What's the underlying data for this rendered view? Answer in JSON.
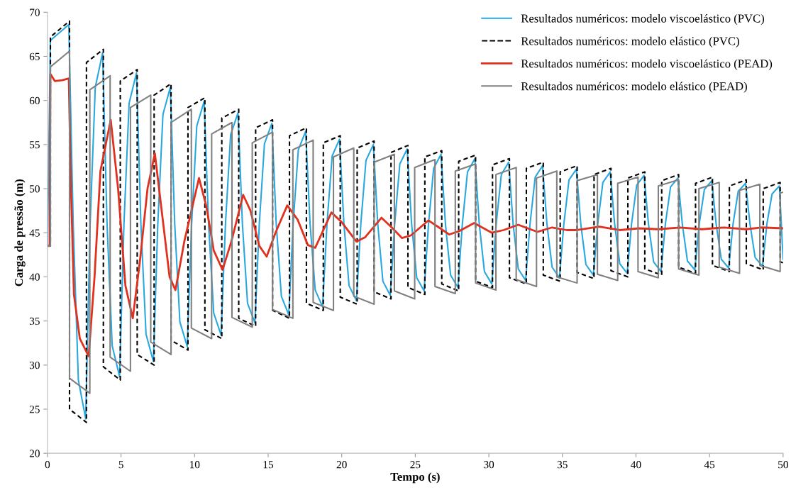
{
  "chart_data": {
    "type": "line",
    "xlabel": "Tempo (s)",
    "ylabel": "Carga de pressão (m)",
    "xlim": [
      0,
      50
    ],
    "ylim": [
      20,
      70
    ],
    "xticks": [
      0,
      5,
      10,
      15,
      20,
      25,
      30,
      35,
      40,
      45,
      50
    ],
    "yticks": [
      20,
      25,
      30,
      35,
      40,
      45,
      50,
      55,
      60,
      65,
      70
    ],
    "grid": false,
    "legend": "top right",
    "marker": "none",
    "series": [
      {
        "name": "Resultados numéricos: modelo viscoelástico (PVC)",
        "color": "#29a8e0",
        "line_style": "solid",
        "x": [
          0,
          0.2,
          1.45,
          1.75,
          2.1,
          2.6,
          2.9,
          3.25,
          3.75,
          4.05,
          4.4,
          4.9,
          5.2,
          5.55,
          6.05,
          6.35,
          6.7,
          7.2,
          7.5,
          7.85,
          8.35,
          8.65,
          9.0,
          9.5,
          9.8,
          10.15,
          10.65,
          10.95,
          11.3,
          11.8,
          12.1,
          12.45,
          12.95,
          13.25,
          13.6,
          14.1,
          14.4,
          14.75,
          15.25,
          15.55,
          15.9,
          16.4,
          16.7,
          17.05,
          17.55,
          17.85,
          18.2,
          18.7,
          19.0,
          19.35,
          19.85,
          20.15,
          20.5,
          21.0,
          21.3,
          21.65,
          22.15,
          22.45,
          22.8,
          23.3,
          23.6,
          23.95,
          24.45,
          24.75,
          25.1,
          25.6,
          25.9,
          26.25,
          26.75,
          27.05,
          27.4,
          27.9,
          28.2,
          28.55,
          29.05,
          29.35,
          29.7,
          30.2,
          30.5,
          30.85,
          31.35,
          31.65,
          32.0,
          32.5,
          32.8,
          33.15,
          33.65,
          33.95,
          34.3,
          34.8,
          35.1,
          35.45,
          35.95,
          36.25,
          36.6,
          37.1,
          37.4,
          37.75,
          38.25,
          38.55,
          38.9,
          39.4,
          39.7,
          40.05,
          40.55,
          40.85,
          41.2,
          41.7,
          42.0,
          42.35,
          42.85,
          43.15,
          43.5,
          44.0,
          44.3,
          44.65,
          45.15,
          45.45,
          45.8,
          46.3,
          46.6,
          46.95,
          47.45,
          47.75,
          48.1,
          48.6,
          48.9,
          49.25,
          49.75,
          50
        ],
        "values": [
          43.5,
          66.8,
          68.6,
          46,
          28.3,
          23.9,
          46,
          61.5,
          65.4,
          46,
          32.2,
          28.7,
          46,
          59.7,
          63.1,
          46,
          33.5,
          30.4,
          46,
          58.4,
          61.5,
          46,
          34.9,
          32.1,
          46,
          57.1,
          59.9,
          46,
          35.9,
          33.4,
          46,
          56.1,
          58.6,
          46,
          37.0,
          34.8,
          46,
          55.1,
          57.4,
          46,
          37.8,
          35.7,
          46,
          54.4,
          56.5,
          46,
          38.5,
          36.6,
          46,
          53.7,
          55.6,
          46,
          39.0,
          37.3,
          46,
          53.2,
          55.0,
          46,
          39.5,
          37.9,
          46,
          52.8,
          54.5,
          46,
          39.9,
          38.4,
          46,
          52.3,
          53.9,
          46,
          40.2,
          38.8,
          46,
          51.9,
          53.4,
          46,
          40.6,
          39.2,
          46,
          51.6,
          53.0,
          46,
          40.9,
          39.6,
          46,
          51.3,
          52.6,
          46,
          41.1,
          39.9,
          46,
          51.0,
          52.2,
          46,
          41.4,
          40.2,
          46,
          50.7,
          51.9,
          46,
          41.5,
          40.4,
          46,
          50.4,
          51.5,
          46,
          41.7,
          40.6,
          46,
          50.2,
          51.2,
          46,
          41.8,
          40.8,
          46,
          49.9,
          50.9,
          46,
          42.0,
          41.0,
          46,
          49.7,
          50.6,
          46,
          42.2,
          41.2,
          46,
          49.4,
          50.3,
          42
        ]
      },
      {
        "name": "Resultados numéricos: modelo elástico (PVC)",
        "color": "#000000",
        "line_style": "dashed",
        "x": [
          0,
          0.2,
          0.2,
          1.5,
          1.5,
          2.65,
          2.65,
          3.8,
          3.8,
          4.95,
          4.95,
          6.1,
          6.1,
          7.25,
          7.25,
          8.4,
          8.4,
          9.55,
          9.55,
          10.7,
          10.7,
          11.85,
          11.85,
          13.0,
          13.0,
          14.15,
          14.15,
          15.3,
          15.3,
          16.45,
          16.45,
          17.6,
          17.6,
          18.75,
          18.75,
          19.9,
          19.9,
          21.05,
          21.05,
          22.2,
          22.2,
          23.35,
          23.35,
          24.5,
          24.5,
          25.65,
          25.65,
          26.8,
          26.8,
          27.95,
          27.95,
          29.1,
          29.1,
          30.25,
          30.25,
          31.4,
          31.4,
          32.55,
          32.55,
          33.7,
          33.7,
          34.85,
          34.85,
          36.0,
          36.0,
          37.15,
          37.15,
          38.3,
          38.3,
          39.45,
          39.45,
          40.6,
          40.6,
          41.75,
          41.75,
          42.9,
          42.9,
          44.05,
          44.05,
          45.2,
          45.2,
          46.35,
          46.35,
          47.5,
          47.5,
          48.65,
          48.65,
          49.8,
          49.8,
          50
        ],
        "values": [
          43.5,
          43.5,
          67.2,
          69,
          25,
          23.5,
          64.3,
          65.8,
          29.8,
          28.3,
          62.2,
          63.5,
          31.2,
          30,
          60.6,
          61.9,
          32.8,
          31.7,
          59.2,
          60.3,
          34,
          33,
          58,
          59,
          35.3,
          34.4,
          56.9,
          57.8,
          36.2,
          35.3,
          56,
          56.9,
          37,
          36.2,
          55.2,
          56,
          37.7,
          36.9,
          54.6,
          55.4,
          38.3,
          37.5,
          54.1,
          54.9,
          38.8,
          38,
          53.6,
          54.3,
          39.2,
          38.4,
          53.1,
          53.8,
          39.5,
          38.8,
          52.7,
          53.4,
          39.9,
          39.2,
          52.3,
          53,
          40.2,
          39.5,
          51.9,
          52.6,
          40.5,
          39.8,
          51.6,
          52.3,
          40.7,
          40,
          51.2,
          51.9,
          40.9,
          40.2,
          50.9,
          51.6,
          41.1,
          40.4,
          50.6,
          51.3,
          41.3,
          40.6,
          50.3,
          51,
          41.5,
          40.8,
          50,
          50.7,
          41.7,
          41.6
        ]
      },
      {
        "name": "Resultados numéricos: modelo viscoelástico (PEAD)",
        "color": "#e0301e",
        "line_style": "solid",
        "x": [
          0,
          0.15,
          0.2,
          0.5,
          1.0,
          1.45,
          1.6,
          1.8,
          2.2,
          2.8,
          3.2,
          3.6,
          4.3,
          4.8,
          5.3,
          5.8,
          6.3,
          6.8,
          7.3,
          7.8,
          8.3,
          8.7,
          9.3,
          10.3,
          10.8,
          11.3,
          11.9,
          12.5,
          13.3,
          13.8,
          14.4,
          14.9,
          15.5,
          16.3,
          17.0,
          17.7,
          18.2,
          19.3,
          20.0,
          21.0,
          21.6,
          22.7,
          23.4,
          24.1,
          24.7,
          25.9,
          26.7,
          27.3,
          28.0,
          29.0,
          30.2,
          31.0,
          32.0,
          33.3,
          34.3,
          35.3,
          36.0,
          37.5,
          38.9,
          40.2,
          41.5,
          43.0,
          44.5,
          46.0,
          47.5,
          48.5,
          50
        ],
        "values": [
          43.5,
          43.5,
          63,
          62.2,
          62.3,
          62.5,
          50,
          38,
          33,
          31,
          40,
          52,
          57.8,
          50,
          39,
          35.3,
          42,
          50,
          54,
          47,
          40,
          38.5,
          44,
          51.2,
          48,
          43,
          40.8,
          44,
          49.3,
          47.5,
          43.5,
          42.3,
          45,
          48.1,
          46.5,
          43.6,
          43.3,
          47.3,
          46.2,
          44,
          44.5,
          46.7,
          45.6,
          44.4,
          44.7,
          46.4,
          45.5,
          44.8,
          45.2,
          46.1,
          45,
          45.3,
          45.9,
          45.1,
          45.6,
          45.3,
          45.3,
          45.7,
          45.3,
          45.5,
          45.4,
          45.6,
          45.4,
          45.6,
          45.4,
          45.6,
          45.5
        ]
      },
      {
        "name": "Resultados numéricos: modelo elástico (PEAD)",
        "color": "#808080",
        "line_style": "solid",
        "x": [
          0,
          0.2,
          0.2,
          1.5,
          1.5,
          2.88,
          2.88,
          4.26,
          4.26,
          5.64,
          5.64,
          7.02,
          7.02,
          8.4,
          8.4,
          9.78,
          9.78,
          11.16,
          11.16,
          12.54,
          12.54,
          13.92,
          13.92,
          15.3,
          15.3,
          16.68,
          16.68,
          18.06,
          18.06,
          19.44,
          19.44,
          20.82,
          20.82,
          22.2,
          22.2,
          23.58,
          23.58,
          24.96,
          24.96,
          26.34,
          26.34,
          27.72,
          27.72,
          29.1,
          29.1,
          30.48,
          30.48,
          31.86,
          31.86,
          33.24,
          33.24,
          34.62,
          34.62,
          36.0,
          36.0,
          37.38,
          37.38,
          38.76,
          38.76,
          40.14,
          40.14,
          41.52,
          41.52,
          42.9,
          42.9,
          44.28,
          44.28,
          45.66,
          45.66,
          47.04,
          47.04,
          48.42,
          48.42,
          49.8,
          49.8,
          50
        ],
        "values": [
          43.5,
          43.5,
          63.8,
          65.6,
          28.5,
          26.8,
          61.2,
          62.8,
          30.9,
          29.3,
          59.2,
          60.6,
          32.6,
          31.2,
          57.5,
          59,
          34.2,
          33,
          56.2,
          57.5,
          35.4,
          34.3,
          55.2,
          56.4,
          36.3,
          35.3,
          54.4,
          55.5,
          37.1,
          36.2,
          53.6,
          54.6,
          37.8,
          36.9,
          53,
          53.9,
          38.4,
          37.5,
          52.4,
          53.3,
          38.9,
          38.1,
          52,
          52.8,
          39.3,
          38.5,
          51.6,
          52.4,
          39.7,
          38.9,
          51.2,
          52,
          40,
          39.3,
          50.9,
          51.6,
          40.3,
          39.6,
          50.6,
          51.3,
          40.6,
          39.9,
          50.3,
          51,
          40.9,
          40.2,
          50,
          50.7,
          41.1,
          40.4,
          49.8,
          50.5,
          41.3,
          40.6,
          49.5,
          49.6
        ]
      }
    ]
  }
}
